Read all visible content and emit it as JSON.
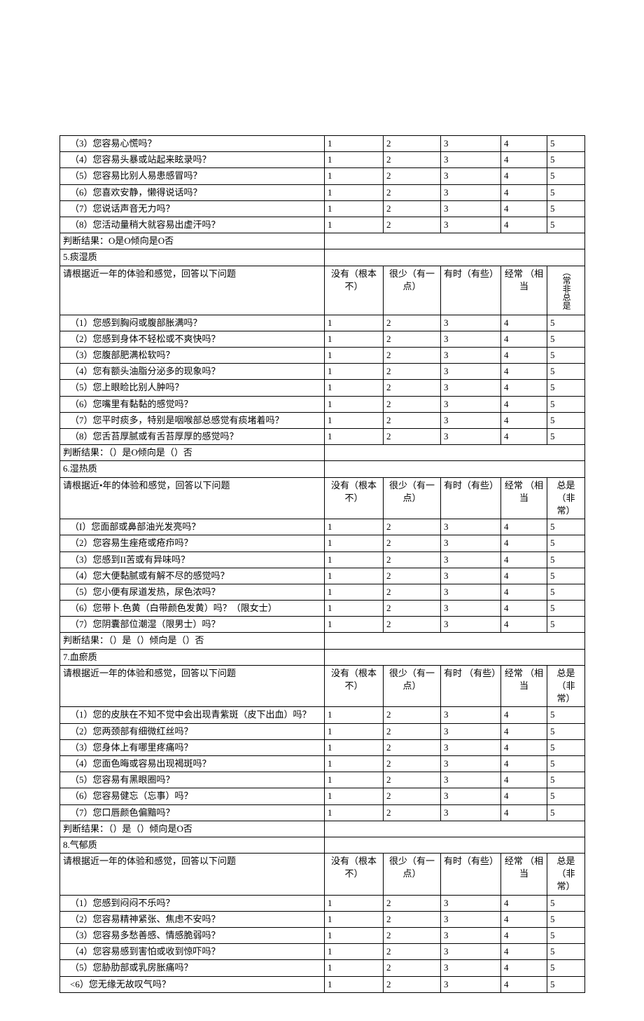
{
  "columns": {
    "c1": "没有（根本不）",
    "c2": "很少（有一点）",
    "c3": "有时（有些）",
    "c3b": "有时\n（有些）",
    "c4": "经常\n（相当",
    "c5": "总是（非常）",
    "c5_vert": "（常非总是"
  },
  "vals": {
    "v1": "1",
    "v2": "2",
    "v3": "3",
    "v4": "4",
    "v5": "5"
  },
  "section4": {
    "rows": [
      "（3）您容易心慌吗？",
      "（4）您容易头暴或站起来眩录吗？",
      "（5）您容易比别人易患感冒吗？",
      "（6）您喜欢安静，懒得说话吗？",
      "（7）您说话声音无力吗？",
      "（8）您活动量稍大就容易出虚汗吗？"
    ],
    "judge": "判断结果：O是O倾向是O否"
  },
  "section5": {
    "title": "5.痰湿质",
    "prompt": "请根据近一年的体验和感觉，回答以下问题",
    "rows": [
      "（1）您感到胸闷或腹部胀满吗？",
      "（2）您感到身体不轻松或不爽快吗？",
      "（3）您腹部肥满松软吗？",
      "（4）您有额头油脂分泌多的现象吗？",
      "（5）您上眼睑比别人肿吗？",
      "（6）您嘴里有黏黏的感觉吗？",
      "（7）您平时痰多，特别是咽喉部总感觉有痰堵着吗？",
      "（8）您舌苔厚腻或有舌苔厚厚的感觉吗？"
    ],
    "judge": "判断结果：（）是O倾向是（）否"
  },
  "section6": {
    "title": "6.湿热质",
    "prompt": "请根据近•年的体验和感觉，回答以下问题",
    "rows": [
      "（I）您面部或鼻部油光发亮吗？",
      "（2）您容易生痤疮或疮疖吗？",
      "（3）您感到II苦或有异味吗？",
      "（4）您大便黏腻或有解不尽的感觉吗？",
      "（5）您小便有尿道发热，尿色浓吗？",
      "（6）您带卜.色黄（白带颜色发黄）吗？（限女士）",
      "（7）您阴囊部位潮湿（限男士）吗？"
    ],
    "judge": "判断结果：（）是（）倾向是（）否"
  },
  "section7": {
    "title": "7.血瘀质",
    "prompt": "请根据近一年的体验和感觉，回答以下问题",
    "rows": [
      "（1）您的皮肤在不知不觉中会出现青紫斑（皮下出血）吗？",
      "（2）您两颈部有细微红丝吗？",
      "（3）您身体上有哪里疼痛吗？",
      "（4）您面色晦或容易出现褐斑吗？",
      "（5）您容易有黑眼圈吗？",
      "（6）您容易健忘（忘事）吗？",
      "（7）您口唇颜色偏黯吗？"
    ],
    "judge": "判断结果：（）是（）倾向是O否"
  },
  "section8": {
    "title": "8.气郁质",
    "prompt": "请根据近一年的体验和感觉，回答以下问题",
    "rows": [
      "（1）您感到闷闷不乐吗？",
      "（2）您容易精神紧张、焦虑不安吗？",
      "（3）您容易多愁善感、情感脆弱吗？",
      "（4）您容易感到害怕或收到惊吓吗？",
      "（5）您胁肋部或乳房胀痛吗？",
      "<6）您无缘无故叹气吗？"
    ]
  }
}
